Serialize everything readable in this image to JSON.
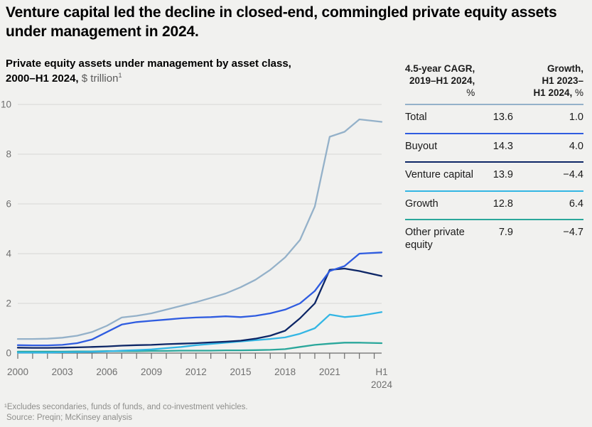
{
  "title": "Venture capital led the decline in closed-end, commingled private equity assets under management in 2024.",
  "subtitle": {
    "bold1": "Private equity assets under management by asset class,",
    "bold2": "2000–H1 2024,",
    "unit": "$ trillion",
    "sup": "1"
  },
  "table": {
    "header": {
      "c1l1": "4.5-year CAGR,",
      "c1l2": "2019–H1 2024,",
      "c1l3": "%",
      "c2l1": "Growth,",
      "c2l2": "H1 2023–",
      "c2l3b": "H1 2024,",
      "c2l3u": " %"
    },
    "rows": [
      {
        "label": "Total",
        "cagr": "13.6",
        "growth": "1.0",
        "color": "#94b1c9"
      },
      {
        "label": "Buyout",
        "cagr": "14.3",
        "growth": "4.0",
        "color": "#2f5ce0"
      },
      {
        "label": "Venture capital",
        "cagr": "13.9",
        "growth": "−4.4",
        "color": "#0d2666"
      },
      {
        "label": "Growth",
        "cagr": "12.8",
        "growth": "6.4",
        "color": "#33b6e4"
      },
      {
        "label": "Other private equity",
        "cagr": "7.9",
        "growth": "−4.7",
        "color": "#2aa79b"
      }
    ]
  },
  "footnote": {
    "line1": "¹Excludes secondaries, funds of funds, and co-investment vehicles.",
    "line2": "Source: Preqin; McKinsey analysis"
  },
  "chart_data": {
    "type": "line",
    "title": "Private equity assets under management by asset class, 2000–H1 2024",
    "ylabel": "$ trillion",
    "ylim": [
      0,
      10
    ],
    "yticks": [
      0,
      2,
      4,
      6,
      8,
      10
    ],
    "grid": true,
    "legend_position": "none (encoded by colored rules in right-hand table)",
    "x": [
      2000,
      2001,
      2002,
      2003,
      2004,
      2005,
      2006,
      2007,
      2008,
      2009,
      2010,
      2011,
      2012,
      2013,
      2014,
      2015,
      2016,
      2017,
      2018,
      2019,
      2020,
      2021,
      2022,
      2023,
      2024.5
    ],
    "xtick_labels": [
      {
        "x": 2000,
        "label": "2000"
      },
      {
        "x": 2003,
        "label": "2003"
      },
      {
        "x": 2006,
        "label": "2006"
      },
      {
        "x": 2009,
        "label": "2009"
      },
      {
        "x": 2012,
        "label": "2012"
      },
      {
        "x": 2015,
        "label": "2015"
      },
      {
        "x": 2018,
        "label": "2018"
      },
      {
        "x": 2021,
        "label": "2021"
      },
      {
        "x": 2024.5,
        "label": "H1|2024"
      }
    ],
    "series": [
      {
        "name": "Total",
        "color": "#94b1c9",
        "values": [
          0.57,
          0.57,
          0.58,
          0.62,
          0.7,
          0.85,
          1.1,
          1.43,
          1.5,
          1.6,
          1.75,
          1.9,
          2.05,
          2.22,
          2.4,
          2.65,
          2.95,
          3.35,
          3.85,
          4.55,
          5.9,
          8.7,
          8.9,
          9.4,
          9.3
        ]
      },
      {
        "name": "Buyout",
        "color": "#2f5ce0",
        "values": [
          0.32,
          0.31,
          0.31,
          0.33,
          0.4,
          0.55,
          0.85,
          1.15,
          1.25,
          1.3,
          1.35,
          1.4,
          1.43,
          1.45,
          1.48,
          1.45,
          1.5,
          1.6,
          1.75,
          2.0,
          2.5,
          3.3,
          3.5,
          4.0,
          4.05
        ]
      },
      {
        "name": "Venture capital",
        "color": "#0d2666",
        "values": [
          0.22,
          0.21,
          0.21,
          0.22,
          0.23,
          0.25,
          0.27,
          0.3,
          0.32,
          0.33,
          0.36,
          0.38,
          0.4,
          0.43,
          0.46,
          0.5,
          0.58,
          0.7,
          0.9,
          1.4,
          2.0,
          3.35,
          3.4,
          3.3,
          3.1
        ]
      },
      {
        "name": "Growth",
        "color": "#33b6e4",
        "values": [
          0.02,
          0.02,
          0.02,
          0.03,
          0.04,
          0.05,
          0.07,
          0.1,
          0.12,
          0.15,
          0.2,
          0.25,
          0.32,
          0.37,
          0.42,
          0.47,
          0.52,
          0.57,
          0.63,
          0.78,
          1.0,
          1.55,
          1.45,
          1.5,
          1.65
        ]
      },
      {
        "name": "Other private equity",
        "color": "#2aa79b",
        "values": [
          0.06,
          0.06,
          0.06,
          0.06,
          0.07,
          0.07,
          0.08,
          0.08,
          0.08,
          0.09,
          0.09,
          0.1,
          0.1,
          0.1,
          0.11,
          0.11,
          0.12,
          0.13,
          0.16,
          0.25,
          0.33,
          0.38,
          0.42,
          0.42,
          0.4
        ]
      }
    ]
  }
}
